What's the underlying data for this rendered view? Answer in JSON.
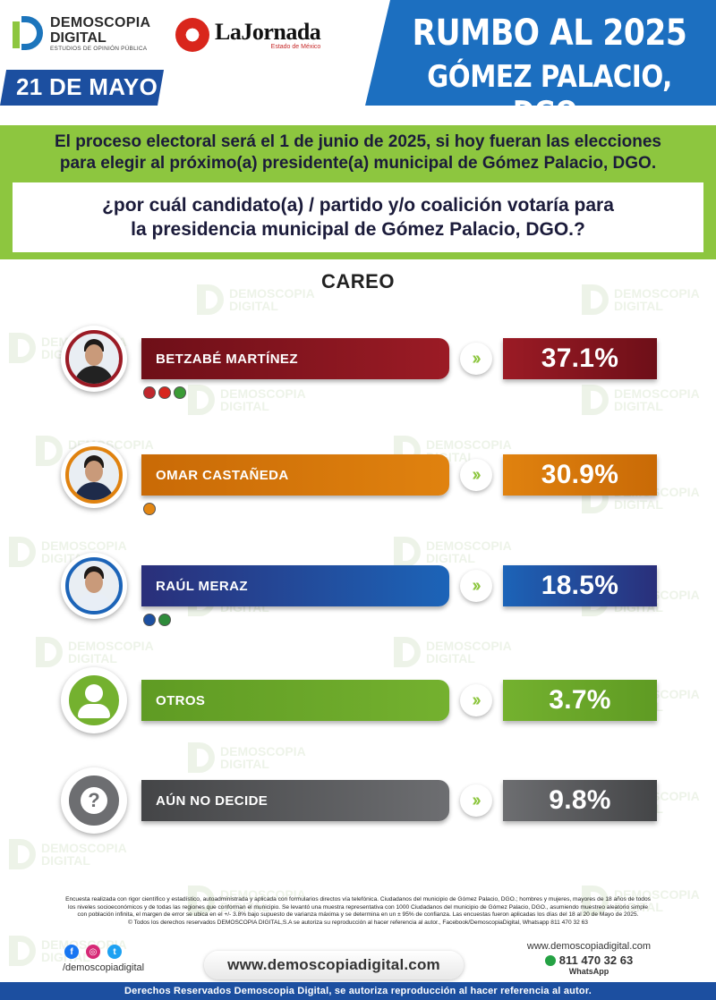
{
  "header": {
    "logo_line1": "DEMOSCOPIA",
    "logo_line2": "DIGITAL",
    "logo_line3": "ESTUDIOS DE OPINIÓN PÚBLICA",
    "partner_name": "LaJornada",
    "partner_sub": "Estado de México",
    "date": "21 DE MAYO",
    "title_line1": "RUMBO AL 2025",
    "title_line2": "GÓMEZ PALACIO, DGO."
  },
  "intro": {
    "line1": "El proceso electoral será el 1 de junio de 2025, si hoy fueran las elecciones",
    "line2": "para elegir al próximo(a) presidente(a) municipal de Gómez Palacio, DGO."
  },
  "question": {
    "line1": "¿por cuál candidato(a) / partido y/o coalición votaría para",
    "line2": "la presidencia municipal de Gómez Palacio, DGO.?"
  },
  "section_label": "CAREO",
  "chart_data": {
    "type": "bar",
    "title": "CAREO",
    "categories": [
      "BETZABÉ MARTÍNEZ",
      "OMAR CASTAÑEDA",
      "RAÚL MERAZ",
      "OTROS",
      "AÚN NO DECIDE"
    ],
    "values": [
      37.1,
      30.9,
      18.5,
      3.7,
      9.8
    ],
    "value_labels": [
      "37.1%",
      "30.9%",
      "18.5%",
      "3.7%",
      "9.8%"
    ],
    "colors": [
      "#9b1b25",
      "#e0820f",
      "#1c64b8",
      "#74b12f",
      "#6d6e71"
    ],
    "unit": "%"
  },
  "candidates": [
    {
      "name": "BETZABÉ MARTÍNEZ",
      "pct": "37.1%",
      "color": "#9b1b25",
      "color_dark": "#6e0f18",
      "avatar_icon": "person-photo-icon",
      "party_icons": [
        "#c0272d",
        "#d7261e",
        "#3a9b35"
      ]
    },
    {
      "name": "OMAR CASTAÑEDA",
      "pct": "30.9%",
      "color": "#e0820f",
      "color_dark": "#c96a06",
      "avatar_icon": "person-photo-icon",
      "party_icons": [
        "#e38612"
      ]
    },
    {
      "name": "RAÚL MERAZ",
      "pct": "18.5%",
      "color": "#1c64b8",
      "color_dark": "#2a2f7a",
      "avatar_icon": "person-photo-icon",
      "party_icons": [
        "#1c4fa0",
        "#2e8b3a"
      ]
    },
    {
      "name": "OTROS",
      "pct": "3.7%",
      "color": "#74b12f",
      "color_dark": "#5f9b23",
      "avatar_icon": "generic-user-icon",
      "party_icons": []
    },
    {
      "name": "AÚN NO DECIDE",
      "pct": "9.8%",
      "color": "#6d6e71",
      "color_dark": "#444547",
      "avatar_icon": "question-mark-icon",
      "party_icons": []
    }
  ],
  "footer": {
    "disclaimer_1": "Encuesta realizada con rigor científico y estadístico, autoadministrada y aplicada con formularios directos vía telefónica. Ciudadanos del municipio de Gómez Palacio, DGO.; hombres y mujeres, mayores de 18 años de todos",
    "disclaimer_2": "los niveles socioeconómicos y de todas las regiones que conforman el municipio. Se levantó una muestra representativa con 1000 Ciudadanos del municipio de Gómez Palacio, DGO., asumiendo muestreo aleatorio simple",
    "disclaimer_3": "con población infinita, el margen de error se ubica en el +/- 3.8% bajo supuesto de varianza máxima y se determina en un ± 95% de confianza. Las encuestas fueron aplicadas los días del 18 al 20 de Mayo de 2025.",
    "disclaimer_4": "© Todos los derechos reservados DEMOSCOPIA DIGITAL,S.A se autoriza su reproducción al hacer referencia al autor., Facebook/DemoscopiaDigital, Whatsapp 811 470 32 63",
    "social_handle": "/demoscopiadigital",
    "website": "www.demoscopiadigital.com",
    "contact_site": "www.demoscopiadigital.com",
    "phone": "811 470 32 63",
    "whatsapp_label": "WhatsApp",
    "rights_bar": "Derechos Reservados Demoscopia Digital, se autoriza reproducción al hacer referencia al autor."
  },
  "watermark_line1": "DEMOSCOPIA",
  "watermark_line2": "DIGITAL",
  "colors": {
    "brand_blue": "#1c6fc0",
    "navy": "#1c4fa0",
    "green": "#8dc63f"
  }
}
